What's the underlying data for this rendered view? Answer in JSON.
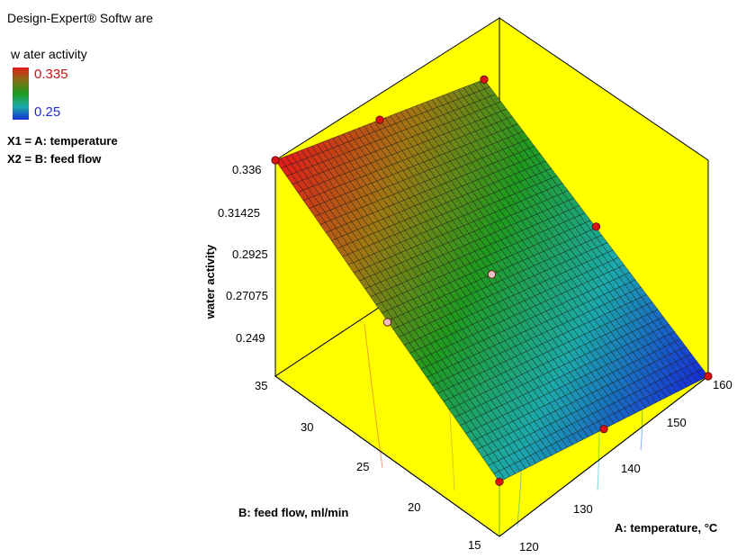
{
  "software": "Design-Expert® Softw are",
  "legend": {
    "title": "w ater activity",
    "max_label": "0.335",
    "min_label": "0.25"
  },
  "factors": {
    "x1": "X1 = A: temperature",
    "x2": "X2 = B: feed flow"
  },
  "colors": {
    "surface_high": "#e21a1a",
    "surface_mid": "#1f9a1f",
    "surface_low": "#1630d8",
    "box_fill": "#ffff00",
    "design_point": "#d81414"
  },
  "chart_data": {
    "type": "surface3d",
    "title": "",
    "zlabel": "water activity",
    "xlabel": "A: temperature, °C",
    "ylabel": "B: feed flow, ml/min",
    "x": [
      120,
      160
    ],
    "y": [
      15,
      35
    ],
    "xlim": [
      120,
      160
    ],
    "ylim": [
      15,
      35
    ],
    "zlim": [
      0.249,
      0.336
    ],
    "x_ticks": [
      "120",
      "130",
      "140",
      "150",
      "160"
    ],
    "y_ticks": [
      "15",
      "20",
      "25",
      "30",
      "35"
    ],
    "z_ticks": [
      "0.249",
      "0.27075",
      "0.2925",
      "0.31425",
      "0.336"
    ],
    "corner_values": {
      "x120_y15": 0.271,
      "x160_y15": 0.249,
      "x120_y35": 0.336,
      "x160_y35": 0.304
    },
    "design_points": [
      {
        "x": 120,
        "y": 15,
        "z": 0.271
      },
      {
        "x": 160,
        "y": 15,
        "z": 0.249
      },
      {
        "x": 120,
        "y": 35,
        "z": 0.336
      },
      {
        "x": 160,
        "y": 35,
        "z": 0.304
      },
      {
        "x": 140,
        "y": 15,
        "z": 0.26
      },
      {
        "x": 140,
        "y": 35,
        "z": 0.32
      },
      {
        "x": 120,
        "y": 25,
        "z": 0.303
      },
      {
        "x": 160,
        "y": 25,
        "z": 0.277
      },
      {
        "x": 140,
        "y": 25,
        "z": 0.29
      }
    ]
  }
}
